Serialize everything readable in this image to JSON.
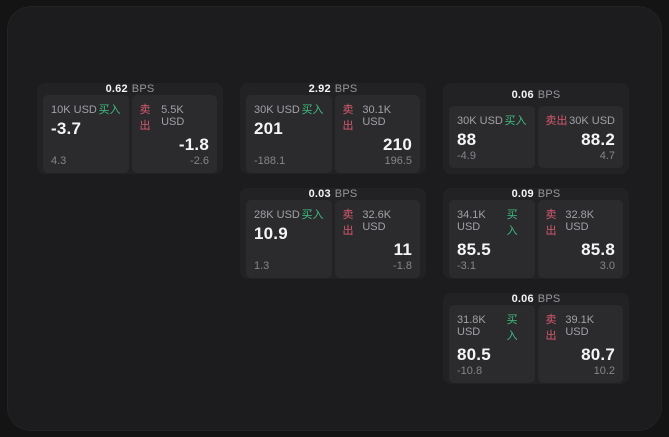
{
  "colors": {
    "page_background": "#141414",
    "panel_background": "#1c1c1e",
    "card_background": "#222225",
    "cell_background": "#2b2b2e",
    "buy_green": "#3fbd7d",
    "sell_red": "#d4596d",
    "text_primary": "#f5f5f6",
    "text_secondary": "#a1a1a6",
    "text_muted": "#85858a"
  },
  "cards": [
    {
      "spread": "0.62",
      "unit": "BPS",
      "buy": {
        "size": "10K USD",
        "label": "买入",
        "price": "-3.7",
        "change": "4.3"
      },
      "sell": {
        "label": "卖出",
        "size": "5.5K USD",
        "price": "-1.8",
        "change": "-2.6"
      }
    },
    {
      "spread": "2.92",
      "unit": "BPS",
      "buy": {
        "size": "30K USD",
        "label": "买入",
        "price": "201",
        "change": "-188.1"
      },
      "sell": {
        "label": "卖出",
        "size": "30.1K USD",
        "price": "210",
        "change": "196.5"
      }
    },
    {
      "spread": "0.06",
      "unit": "BPS",
      "buy": {
        "size": "30K USD",
        "label": "买入",
        "price": "88",
        "change": "-4.9"
      },
      "sell": {
        "label": "卖出",
        "size": "30K USD",
        "price": "88.2",
        "change": "4.7"
      }
    },
    {
      "spread": "0.03",
      "unit": "BPS",
      "buy": {
        "size": "28K USD",
        "label": "买入",
        "price": "10.9",
        "change": "1.3"
      },
      "sell": {
        "label": "卖出",
        "size": "32.6K USD",
        "price": "11",
        "change": "-1.8"
      }
    },
    {
      "spread": "0.09",
      "unit": "BPS",
      "buy": {
        "size": "34.1K USD",
        "label": "买入",
        "price": "85.5",
        "change": "-3.1"
      },
      "sell": {
        "label": "卖出",
        "size": "32.8K USD",
        "price": "85.8",
        "change": "3.0"
      }
    },
    {
      "spread": "0.06",
      "unit": "BPS",
      "buy": {
        "size": "31.8K USD",
        "label": "买入",
        "price": "80.5",
        "change": "-10.8"
      },
      "sell": {
        "label": "卖出",
        "size": "39.1K USD",
        "price": "80.7",
        "change": "10.2"
      }
    }
  ]
}
